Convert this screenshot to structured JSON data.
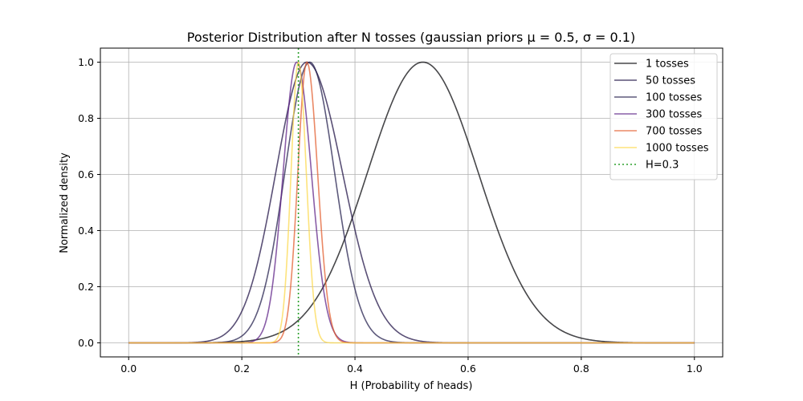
{
  "chart_data": {
    "type": "line",
    "title": "Posterior Distribution after N tosses (gaussian priors μ = 0.5, σ = 0.1)",
    "xlabel": "H (Probability of heads)",
    "ylabel": "Normalized density",
    "xlim": [
      -0.05,
      1.05
    ],
    "ylim": [
      -0.05,
      1.05
    ],
    "xticks": [
      0.0,
      0.2,
      0.4,
      0.6,
      0.8,
      1.0
    ],
    "xtick_labels": [
      "0.0",
      "0.2",
      "0.4",
      "0.6",
      "0.8",
      "1.0"
    ],
    "yticks": [
      0.0,
      0.2,
      0.4,
      0.6,
      0.8,
      1.0
    ],
    "ytick_labels": [
      "0.0",
      "0.2",
      "0.4",
      "0.6",
      "0.8",
      "1.0"
    ],
    "grid": true,
    "legend_position": "top-right",
    "series": [
      {
        "name": "1 tosses",
        "color": "#000004",
        "peak_x": 0.52,
        "sigma_left": 0.098,
        "sigma_right": 0.098
      },
      {
        "name": "50 tosses",
        "color": "#1b0c41",
        "peak_x": 0.315,
        "sigma_left": 0.055,
        "sigma_right": 0.063
      },
      {
        "name": "100 tosses",
        "color": "#1f1a4a",
        "peak_x": 0.32,
        "sigma_left": 0.044,
        "sigma_right": 0.044
      },
      {
        "name": "300 tosses",
        "color": "#5c1f85",
        "peak_x": 0.297,
        "sigma_left": 0.024,
        "sigma_right": 0.026
      },
      {
        "name": "700 tosses",
        "color": "#e25a2a",
        "peak_x": 0.315,
        "sigma_left": 0.016,
        "sigma_right": 0.019
      },
      {
        "name": "1000 tosses",
        "color": "#fcd84a",
        "peak_x": 0.3,
        "sigma_left": 0.013,
        "sigma_right": 0.014
      }
    ],
    "reference_line": {
      "name": "H=0.3",
      "x": 0.3,
      "color": "#2ca02c",
      "style": "dotted"
    }
  }
}
